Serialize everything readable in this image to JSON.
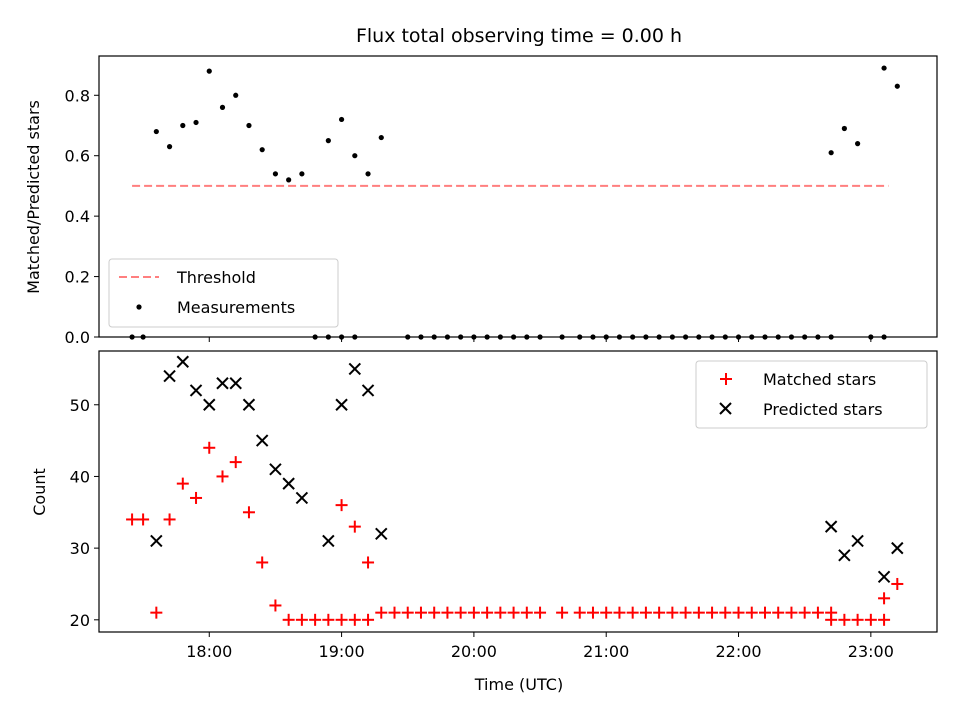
{
  "chart_data": [
    {
      "type": "scatter",
      "title": "Flux total observing time = 0.00 h",
      "xlabel": "",
      "ylabel": "Matched/Predicted stars",
      "xlim": [
        "17:10",
        "23:30"
      ],
      "ylim": [
        0,
        0.93
      ],
      "x_ticks": [
        "18:00",
        "19:00",
        "20:00",
        "21:00",
        "22:00",
        "23:00"
      ],
      "y_ticks": [
        "0.0",
        "0.2",
        "0.4",
        "0.6",
        "0.8"
      ],
      "legend": {
        "position": "bottom-left",
        "entries": [
          "Threshold",
          "Measurements"
        ]
      },
      "threshold": {
        "name": "Threshold",
        "value": 0.5,
        "x_start": "17:25",
        "x_end": "23:08",
        "color": "#ff7f7f",
        "style": "dashed"
      },
      "series": [
        {
          "name": "Measurements",
          "marker": "dot",
          "color": "#000000",
          "points": [
            [
              "17:25",
              0.0
            ],
            [
              "17:30",
              0.0
            ],
            [
              "17:36",
              0.68
            ],
            [
              "17:42",
              0.63
            ],
            [
              "17:48",
              0.7
            ],
            [
              "17:54",
              0.71
            ],
            [
              "18:00",
              0.88
            ],
            [
              "18:06",
              0.76
            ],
            [
              "18:12",
              0.8
            ],
            [
              "18:18",
              0.7
            ],
            [
              "18:24",
              0.62
            ],
            [
              "18:30",
              0.54
            ],
            [
              "18:36",
              0.52
            ],
            [
              "18:42",
              0.54
            ],
            [
              "18:48",
              0.0
            ],
            [
              "18:54",
              0.0
            ],
            [
              "19:00",
              0.0
            ],
            [
              "19:06",
              0.0
            ],
            [
              "18:54",
              0.65
            ],
            [
              "19:00",
              0.72
            ],
            [
              "19:06",
              0.6
            ],
            [
              "19:12",
              0.54
            ],
            [
              "19:18",
              0.66
            ],
            [
              "19:30",
              0.0
            ],
            [
              "19:36",
              0.0
            ],
            [
              "19:42",
              0.0
            ],
            [
              "19:48",
              0.0
            ],
            [
              "19:54",
              0.0
            ],
            [
              "20:00",
              0.0
            ],
            [
              "20:06",
              0.0
            ],
            [
              "20:12",
              0.0
            ],
            [
              "20:18",
              0.0
            ],
            [
              "20:24",
              0.0
            ],
            [
              "20:30",
              0.0
            ],
            [
              "20:40",
              0.0
            ],
            [
              "20:48",
              0.0
            ],
            [
              "20:54",
              0.0
            ],
            [
              "21:00",
              0.0
            ],
            [
              "21:06",
              0.0
            ],
            [
              "21:12",
              0.0
            ],
            [
              "21:18",
              0.0
            ],
            [
              "21:24",
              0.0
            ],
            [
              "21:30",
              0.0
            ],
            [
              "21:36",
              0.0
            ],
            [
              "21:42",
              0.0
            ],
            [
              "21:48",
              0.0
            ],
            [
              "21:54",
              0.0
            ],
            [
              "22:00",
              0.0
            ],
            [
              "22:06",
              0.0
            ],
            [
              "22:12",
              0.0
            ],
            [
              "22:18",
              0.0
            ],
            [
              "22:24",
              0.0
            ],
            [
              "22:30",
              0.0
            ],
            [
              "22:36",
              0.0
            ],
            [
              "22:42",
              0.0
            ],
            [
              "22:42",
              0.61
            ],
            [
              "22:48",
              0.69
            ],
            [
              "22:54",
              0.64
            ],
            [
              "23:00",
              0.0
            ],
            [
              "23:06",
              0.0
            ],
            [
              "23:06",
              0.89
            ],
            [
              "23:12",
              0.83
            ]
          ]
        }
      ]
    },
    {
      "type": "scatter",
      "title": "",
      "xlabel": "Time (UTC)",
      "ylabel": "Count",
      "xlim": [
        "17:10",
        "23:30"
      ],
      "ylim": [
        18.3,
        57.5
      ],
      "x_ticks": [
        "18:00",
        "19:00",
        "20:00",
        "21:00",
        "22:00",
        "23:00"
      ],
      "y_ticks": [
        "20",
        "30",
        "40",
        "50"
      ],
      "legend": {
        "position": "top-right",
        "entries": [
          "Matched stars",
          "Predicted stars"
        ]
      },
      "series": [
        {
          "name": "Matched stars",
          "marker": "plus",
          "color": "#ff0000",
          "points": [
            [
              "17:25",
              34
            ],
            [
              "17:30",
              34
            ],
            [
              "17:36",
              21
            ],
            [
              "17:42",
              34
            ],
            [
              "17:48",
              39
            ],
            [
              "17:54",
              37
            ],
            [
              "18:00",
              44
            ],
            [
              "18:06",
              40
            ],
            [
              "18:12",
              42
            ],
            [
              "18:18",
              35
            ],
            [
              "18:24",
              28
            ],
            [
              "18:30",
              22
            ],
            [
              "18:36",
              20
            ],
            [
              "18:42",
              20
            ],
            [
              "18:48",
              20
            ],
            [
              "18:54",
              20
            ],
            [
              "19:00",
              20
            ],
            [
              "19:06",
              20
            ],
            [
              "19:12",
              20
            ],
            [
              "19:00",
              36
            ],
            [
              "19:06",
              33
            ],
            [
              "19:12",
              28
            ],
            [
              "19:18",
              21
            ],
            [
              "19:24",
              21
            ],
            [
              "19:30",
              21
            ],
            [
              "19:36",
              21
            ],
            [
              "19:42",
              21
            ],
            [
              "19:48",
              21
            ],
            [
              "19:54",
              21
            ],
            [
              "20:00",
              21
            ],
            [
              "20:06",
              21
            ],
            [
              "20:12",
              21
            ],
            [
              "20:18",
              21
            ],
            [
              "20:24",
              21
            ],
            [
              "20:30",
              21
            ],
            [
              "20:40",
              21
            ],
            [
              "20:48",
              21
            ],
            [
              "20:54",
              21
            ],
            [
              "21:00",
              21
            ],
            [
              "21:06",
              21
            ],
            [
              "21:12",
              21
            ],
            [
              "21:18",
              21
            ],
            [
              "21:24",
              21
            ],
            [
              "21:30",
              21
            ],
            [
              "21:36",
              21
            ],
            [
              "21:42",
              21
            ],
            [
              "21:48",
              21
            ],
            [
              "21:54",
              21
            ],
            [
              "22:00",
              21
            ],
            [
              "22:06",
              21
            ],
            [
              "22:12",
              21
            ],
            [
              "22:18",
              21
            ],
            [
              "22:24",
              21
            ],
            [
              "22:30",
              21
            ],
            [
              "22:36",
              21
            ],
            [
              "22:42",
              21
            ],
            [
              "22:42",
              20
            ],
            [
              "22:48",
              20
            ],
            [
              "22:54",
              20
            ],
            [
              "23:00",
              20
            ],
            [
              "23:06",
              20
            ],
            [
              "23:06",
              23
            ],
            [
              "23:12",
              25
            ]
          ]
        },
        {
          "name": "Predicted stars",
          "marker": "x",
          "color": "#000000",
          "points": [
            [
              "17:36",
              31
            ],
            [
              "17:42",
              54
            ],
            [
              "17:48",
              56
            ],
            [
              "17:54",
              52
            ],
            [
              "18:00",
              50
            ],
            [
              "18:06",
              53
            ],
            [
              "18:12",
              53
            ],
            [
              "18:18",
              50
            ],
            [
              "18:24",
              45
            ],
            [
              "18:30",
              41
            ],
            [
              "18:36",
              39
            ],
            [
              "18:42",
              37
            ],
            [
              "18:54",
              31
            ],
            [
              "19:00",
              50
            ],
            [
              "19:06",
              55
            ],
            [
              "19:12",
              52
            ],
            [
              "19:18",
              32
            ],
            [
              "22:42",
              33
            ],
            [
              "22:48",
              29
            ],
            [
              "22:54",
              31
            ],
            [
              "23:06",
              26
            ],
            [
              "23:12",
              30
            ]
          ]
        }
      ]
    }
  ]
}
